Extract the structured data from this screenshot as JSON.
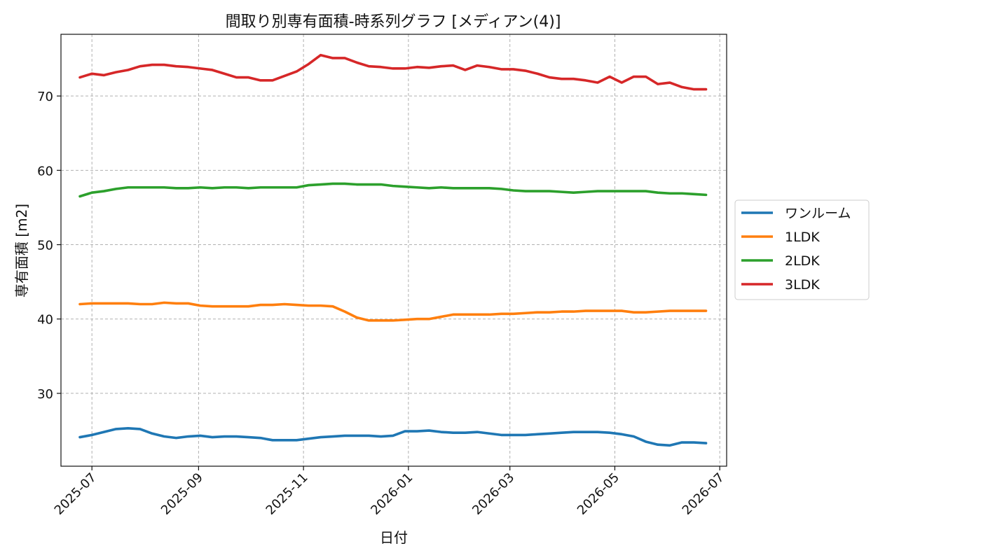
{
  "chart_data": {
    "type": "line",
    "title": "間取り別専有面積-時系列グラフ [メディアン(4)]",
    "xlabel": "日付",
    "ylabel": "専有面積 [m2]",
    "x_tick_labels": [
      "2025-07",
      "2025-09",
      "2025-11",
      "2026-01",
      "2026-03",
      "2026-05",
      "2026-07"
    ],
    "x_tick_dates": [
      "2025-07-01",
      "2025-09-01",
      "2025-11-01",
      "2026-01-01",
      "2026-03-01",
      "2026-05-01",
      "2026-07-01"
    ],
    "xlim": [
      "2025-06-13",
      "2026-07-05"
    ],
    "y_ticks": [
      30,
      40,
      50,
      60,
      70
    ],
    "ylim": [
      20.2,
      78.3
    ],
    "grid": true,
    "legend_placement": "outside-right",
    "x": [
      "2025-06-24",
      "2025-07-01",
      "2025-07-08",
      "2025-07-15",
      "2025-07-22",
      "2025-07-29",
      "2025-08-05",
      "2025-08-12",
      "2025-08-19",
      "2025-08-26",
      "2025-09-02",
      "2025-09-09",
      "2025-09-16",
      "2025-09-23",
      "2025-09-30",
      "2025-10-07",
      "2025-10-14",
      "2025-10-21",
      "2025-10-28",
      "2025-11-04",
      "2025-11-11",
      "2025-11-18",
      "2025-11-25",
      "2025-12-02",
      "2025-12-09",
      "2025-12-16",
      "2025-12-23",
      "2025-12-30",
      "2026-01-06",
      "2026-01-13",
      "2026-01-20",
      "2026-01-27",
      "2026-02-03",
      "2026-02-10",
      "2026-02-17",
      "2026-02-24",
      "2026-03-03",
      "2026-03-10",
      "2026-03-17",
      "2026-03-24",
      "2026-03-31",
      "2026-04-07",
      "2026-04-14",
      "2026-04-21",
      "2026-04-28",
      "2026-05-05",
      "2026-05-12",
      "2026-05-19",
      "2026-05-26",
      "2026-06-02",
      "2026-06-09",
      "2026-06-16",
      "2026-06-23"
    ],
    "series": [
      {
        "name": "ワンルーム",
        "color": "#1f77b4",
        "values": [
          24.1,
          24.4,
          24.8,
          25.2,
          25.3,
          25.2,
          24.6,
          24.2,
          24.0,
          24.2,
          24.3,
          24.1,
          24.2,
          24.2,
          24.1,
          24.0,
          23.7,
          23.7,
          23.7,
          23.9,
          24.1,
          24.2,
          24.3,
          24.3,
          24.3,
          24.2,
          24.3,
          24.9,
          24.9,
          25.0,
          24.8,
          24.7,
          24.7,
          24.8,
          24.6,
          24.4,
          24.4,
          24.4,
          24.5,
          24.6,
          24.7,
          24.8,
          24.8,
          24.8,
          24.7,
          24.5,
          24.2,
          23.5,
          23.1,
          23.0,
          23.4,
          23.4,
          23.3
        ]
      },
      {
        "name": "1LDK",
        "color": "#ff7f0e",
        "values": [
          42.0,
          42.1,
          42.1,
          42.1,
          42.1,
          42.0,
          42.0,
          42.2,
          42.1,
          42.1,
          41.8,
          41.7,
          41.7,
          41.7,
          41.7,
          41.9,
          41.9,
          42.0,
          41.9,
          41.8,
          41.8,
          41.7,
          41.0,
          40.2,
          39.8,
          39.8,
          39.8,
          39.9,
          40.0,
          40.0,
          40.3,
          40.6,
          40.6,
          40.6,
          40.6,
          40.7,
          40.7,
          40.8,
          40.9,
          40.9,
          41.0,
          41.0,
          41.1,
          41.1,
          41.1,
          41.1,
          40.9,
          40.9,
          41.0,
          41.1,
          41.1,
          41.1,
          41.1
        ]
      },
      {
        "name": "2LDK",
        "color": "#2ca02c",
        "values": [
          56.5,
          57.0,
          57.2,
          57.5,
          57.7,
          57.7,
          57.7,
          57.7,
          57.6,
          57.6,
          57.7,
          57.6,
          57.7,
          57.7,
          57.6,
          57.7,
          57.7,
          57.7,
          57.7,
          58.0,
          58.1,
          58.2,
          58.2,
          58.1,
          58.1,
          58.1,
          57.9,
          57.8,
          57.7,
          57.6,
          57.7,
          57.6,
          57.6,
          57.6,
          57.6,
          57.5,
          57.3,
          57.2,
          57.2,
          57.2,
          57.1,
          57.0,
          57.1,
          57.2,
          57.2,
          57.2,
          57.2,
          57.2,
          57.0,
          56.9,
          56.9,
          56.8,
          56.7
        ]
      },
      {
        "name": "3LDK",
        "color": "#d62728",
        "values": [
          72.5,
          73.0,
          72.8,
          73.2,
          73.5,
          74.0,
          74.2,
          74.2,
          74.0,
          73.9,
          73.7,
          73.5,
          73.0,
          72.5,
          72.5,
          72.1,
          72.1,
          72.7,
          73.3,
          74.3,
          75.5,
          75.1,
          75.1,
          74.5,
          74.0,
          73.9,
          73.7,
          73.7,
          73.9,
          73.8,
          74.0,
          74.1,
          73.5,
          74.1,
          73.9,
          73.6,
          73.6,
          73.4,
          73.0,
          72.5,
          72.3,
          72.3,
          72.1,
          71.8,
          72.6,
          71.8,
          72.6,
          72.6,
          71.6,
          71.8,
          71.2,
          70.9,
          70.9
        ]
      }
    ]
  }
}
